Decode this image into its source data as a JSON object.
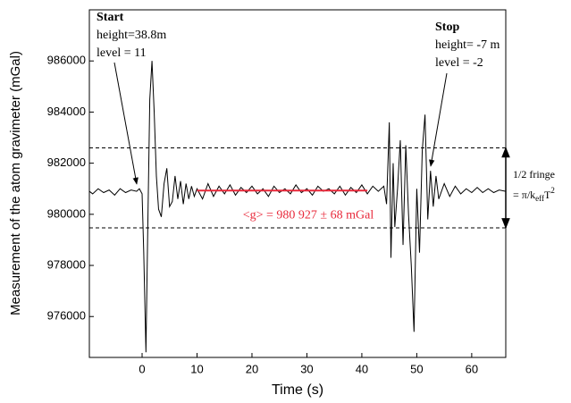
{
  "chart_data": {
    "type": "line",
    "xlabel": "Time (s)",
    "ylabel": "Measurement of the atom gravimeter (mGal)",
    "xlim": [
      -9.6,
      66.2
    ],
    "ylim": [
      974400,
      988000
    ],
    "xticks": [
      0,
      10,
      20,
      30,
      40,
      50,
      60
    ],
    "yticks": [
      976000,
      978000,
      980000,
      982000,
      984000,
      986000
    ],
    "x": [
      -9.6,
      -9,
      -8,
      -7,
      -6,
      -5,
      -4,
      -3,
      -2,
      -1,
      -0.5,
      0,
      0.3,
      0.7,
      1.0,
      1.4,
      1.8,
      2.2,
      2.6,
      3.0,
      3.5,
      4.0,
      4.5,
      5,
      5.5,
      6,
      6.5,
      7,
      7.5,
      8,
      8.5,
      9,
      9.5,
      10,
      11,
      12,
      13,
      14,
      15,
      16,
      17,
      18,
      19,
      20,
      21,
      22,
      23,
      24,
      25,
      26,
      27,
      28,
      29,
      30,
      31,
      32,
      33,
      34,
      35,
      36,
      37,
      38,
      39,
      40,
      41,
      42,
      43,
      44,
      44.5,
      45,
      45.3,
      45.7,
      46,
      46.5,
      47,
      47.5,
      48,
      48.5,
      49,
      49.5,
      50,
      50.5,
      51,
      51.5,
      52,
      52.5,
      53,
      53.5,
      54,
      55,
      56,
      57,
      58,
      59,
      60,
      61,
      62,
      63,
      64,
      65,
      66.2
    ],
    "series": [
      {
        "color": "#000000",
        "values": [
          980900,
          980800,
          981000,
          980850,
          980950,
          980750,
          981000,
          980850,
          980950,
          980900,
          981000,
          980800,
          978500,
          974600,
          979000,
          984500,
          986000,
          984000,
          981500,
          980200,
          979900,
          981200,
          981800,
          980300,
          980500,
          981500,
          980600,
          981300,
          980400,
          981200,
          980600,
          981100,
          980700,
          981000,
          980600,
          981200,
          980700,
          981100,
          980800,
          981150,
          980750,
          981050,
          980850,
          981100,
          980800,
          981000,
          980700,
          981100,
          980850,
          981000,
          980800,
          981150,
          980850,
          981000,
          980750,
          981100,
          980900,
          981000,
          980800,
          981100,
          980750,
          981050,
          980850,
          981150,
          980800,
          981100,
          980900,
          981100,
          980400,
          983600,
          978300,
          982000,
          979500,
          981000,
          982900,
          978800,
          982700,
          980000,
          978000,
          975400,
          981000,
          978500,
          982500,
          983900,
          979800,
          981700,
          980300,
          981500,
          980600,
          981200,
          980700,
          981100,
          980800,
          981000,
          980850,
          981050,
          980850,
          981000,
          980850,
          980950,
          980900
        ]
      }
    ],
    "reference_lines": [
      982600,
      979470
    ],
    "mean_line": {
      "value": 980927,
      "x": [
        10,
        41
      ],
      "color": "#e8283a",
      "label": "<g> = 980 927 ± 68 mGal"
    },
    "start_annotation": {
      "title": "Start",
      "lines": [
        "height=38.8m",
        "level = 11"
      ]
    },
    "stop_annotation": {
      "title": "Stop",
      "lines": [
        "height= -7 m",
        "level = -2"
      ]
    },
    "fringe_annotation": {
      "label": "1/2 fringe",
      "formula": [
        "= π/k",
        "eff",
        "T",
        "2"
      ]
    }
  }
}
